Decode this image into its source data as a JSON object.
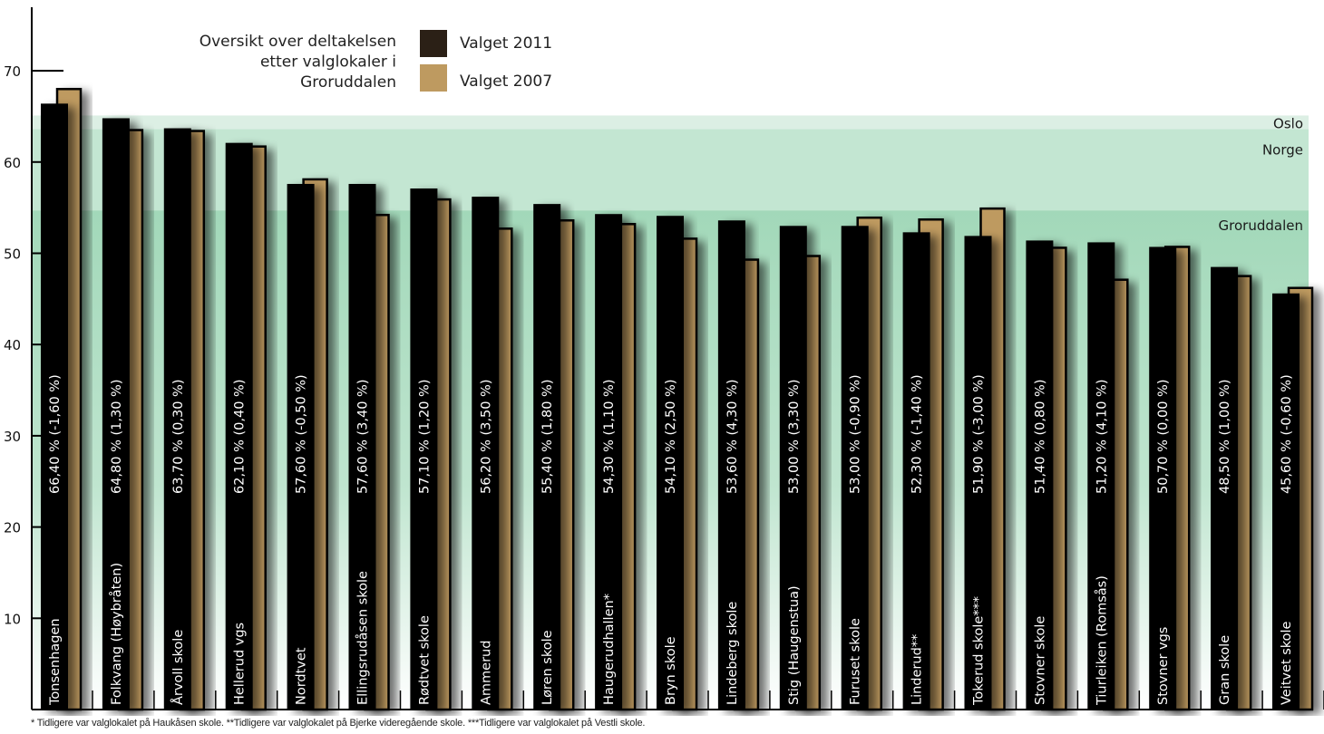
{
  "chart_data": {
    "type": "bar",
    "title": "Oversikt over deltakelsen etter valglokaler i Groruddalen",
    "title_lines": [
      "Oversikt over deltakelsen",
      "etter valglokaler i",
      "Groruddalen"
    ],
    "ylim": [
      0,
      75
    ],
    "yticks": [
      10,
      20,
      30,
      40,
      50,
      60,
      70
    ],
    "grid": false,
    "legend_position": "top-center",
    "categories": [
      "Tonsenhagen",
      "Folkvang (Høybråten)",
      "Årvoll skole",
      "Hellerud vgs",
      "Nordtvet",
      "Ellingsrudåsen skole",
      "Rødtvet skole",
      "Ammerud",
      "Løren skole",
      "Haugerudhallen*",
      "Bryn skole",
      "Lindeberg skole",
      "Stig (Haugenstua)",
      "Furuset skole",
      "Linderud**",
      "Tokerud skole***",
      "Stovner skole",
      "Tiurleiken (Romsås)",
      "Stovner vgs",
      "Gran skole",
      "Veitvet skole"
    ],
    "series": [
      {
        "name": "Valget 2011",
        "color": "#000000",
        "values": [
          66.4,
          64.8,
          63.7,
          62.1,
          57.6,
          57.6,
          57.1,
          56.2,
          55.4,
          54.3,
          54.1,
          53.6,
          53.0,
          53.0,
          52.3,
          51.9,
          51.4,
          51.2,
          50.7,
          48.5,
          45.6
        ]
      },
      {
        "name": "Valget 2007",
        "color": "#be9a60",
        "values": [
          68.0,
          63.5,
          63.4,
          61.7,
          58.1,
          54.2,
          55.9,
          52.7,
          53.6,
          53.2,
          51.6,
          49.3,
          49.7,
          53.9,
          53.7,
          54.9,
          50.6,
          47.1,
          50.7,
          47.5,
          46.2
        ]
      }
    ],
    "data_labels": [
      "66,40 % (-1,60 %)",
      "64,80 % (1,30 %)",
      "63,70 % (0,30 %)",
      "62,10 % (0,40 %)",
      "57,60 % (-0,50 %)",
      "57,60 % (3,40 %)",
      "57,10 % (1,20 %)",
      "56,20 % (3,50 %)",
      "55,40 % (1,80 %)",
      "54,30 % (1,10 %)",
      "54,10 % (2,50 %)",
      "53,60 % (4,30 %)",
      "53,00 % (3,30 %)",
      "53,00 % (-0,90 %)",
      "52,30 % (-1,40 %)",
      "51,90 % (-3,00 %)",
      "51,40 % (0,80 %)",
      "51,20 % (4,10 %)",
      "50,70 % (0,00 %)",
      "48,50 % (1,00 %)",
      "45,60 % (-0,60 %)"
    ],
    "reference_bands": [
      {
        "name": "Oslo",
        "value": 65.1,
        "color": "#dcefe4"
      },
      {
        "name": "Norge",
        "value": 63.6,
        "color": "#c3e6d2"
      },
      {
        "name": "Groruddalen",
        "value": 54.7,
        "color": "#a2d8b9"
      }
    ]
  },
  "footnote": "* Tidligere var valglokalet på Haukåsen skole.  **Tidligere var valglokalet på Bjerke videregående skole. ***Tidligere var valglokalet på Vestli skole."
}
